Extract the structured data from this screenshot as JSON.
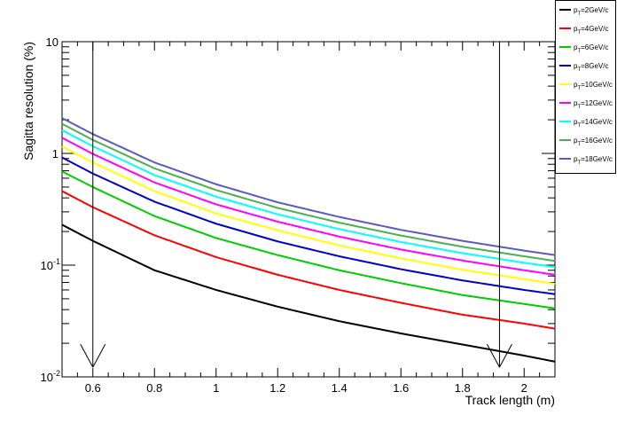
{
  "chart_data": {
    "type": "line",
    "xlabel": "Track length (m)",
    "ylabel": "Sagitta resolution (%)",
    "xlim": [
      0.5,
      2.1
    ],
    "ylim": [
      0.01,
      10
    ],
    "y_scale": "log",
    "x_ticks": [
      "0.6",
      "0.8",
      "1",
      "1.2",
      "1.4",
      "1.6",
      "1.8",
      "2"
    ],
    "y_ticks": [
      {
        "value": 0.01,
        "base": "10",
        "exp": "-2"
      },
      {
        "value": 0.1,
        "base": "10",
        "exp": "-1"
      },
      {
        "value": 1,
        "base": "1",
        "exp": ""
      },
      {
        "value": 10,
        "base": "10",
        "exp": ""
      }
    ],
    "legend_position": "top-right outside",
    "x": [
      0.5,
      0.6,
      0.8,
      1.0,
      1.2,
      1.4,
      1.6,
      1.8,
      2.0,
      2.1
    ],
    "series": [
      {
        "name": "p_T=2GeV/c",
        "prefix": "p",
        "sub": "T",
        "suffix": "=2GeV/c",
        "color": "#000000",
        "values": [
          0.23,
          0.165,
          0.09,
          0.06,
          0.0425,
          0.0315,
          0.0245,
          0.0195,
          0.0155,
          0.0137
        ]
      },
      {
        "name": "p_T=4GeV/c",
        "prefix": "p",
        "sub": "T",
        "suffix": "=4GeV/c",
        "color": "#ff0000",
        "values": [
          0.46,
          0.33,
          0.185,
          0.118,
          0.082,
          0.06,
          0.046,
          0.036,
          0.03,
          0.027
        ]
      },
      {
        "name": "p_T=6GeV/c",
        "prefix": "p",
        "sub": "T",
        "suffix": "=6GeV/c",
        "color": "#00cc00",
        "values": [
          0.69,
          0.5,
          0.275,
          0.175,
          0.123,
          0.09,
          0.069,
          0.054,
          0.045,
          0.041
        ]
      },
      {
        "name": "p_T=8GeV/c",
        "prefix": "p",
        "sub": "T",
        "suffix": "=8GeV/c",
        "color": "#0000cc",
        "values": [
          0.92,
          0.66,
          0.37,
          0.235,
          0.163,
          0.12,
          0.092,
          0.073,
          0.06,
          0.055
        ]
      },
      {
        "name": "p_T=10GeV/c",
        "prefix": "p",
        "sub": "T",
        "suffix": "=10GeV/c",
        "color": "#ffff00",
        "values": [
          1.15,
          0.83,
          0.46,
          0.29,
          0.205,
          0.15,
          0.115,
          0.091,
          0.075,
          0.068
        ]
      },
      {
        "name": "p_T=12GeV/c",
        "prefix": "p",
        "sub": "T",
        "suffix": "=12GeV/c",
        "color": "#ff00ff",
        "values": [
          1.38,
          0.99,
          0.55,
          0.35,
          0.245,
          0.18,
          0.138,
          0.11,
          0.09,
          0.082
        ]
      },
      {
        "name": "p_T=14GeV/c",
        "prefix": "p",
        "sub": "T",
        "suffix": "=14GeV/c",
        "color": "#00ffff",
        "values": [
          1.61,
          1.16,
          0.64,
          0.41,
          0.285,
          0.21,
          0.161,
          0.128,
          0.105,
          0.096
        ]
      },
      {
        "name": "p_T=16GeV/c",
        "prefix": "p",
        "sub": "T",
        "suffix": "=16GeV/c",
        "color": "#4caf50",
        "values": [
          1.84,
          1.32,
          0.735,
          0.47,
          0.325,
          0.24,
          0.184,
          0.146,
          0.12,
          0.109
        ]
      },
      {
        "name": "p_T=18GeV/c",
        "prefix": "p",
        "sub": "T",
        "suffix": "=18GeV/c",
        "color": "#5b5bbf",
        "values": [
          2.07,
          1.49,
          0.83,
          0.53,
          0.365,
          0.27,
          0.207,
          0.165,
          0.135,
          0.123
        ]
      }
    ],
    "annotations": [
      {
        "type": "arrow-down",
        "x": 0.6,
        "from_y": 10,
        "to_y": 0.0122
      },
      {
        "type": "arrow-down",
        "x": 1.92,
        "from_y": 10,
        "to_y": 0.0122
      }
    ]
  }
}
